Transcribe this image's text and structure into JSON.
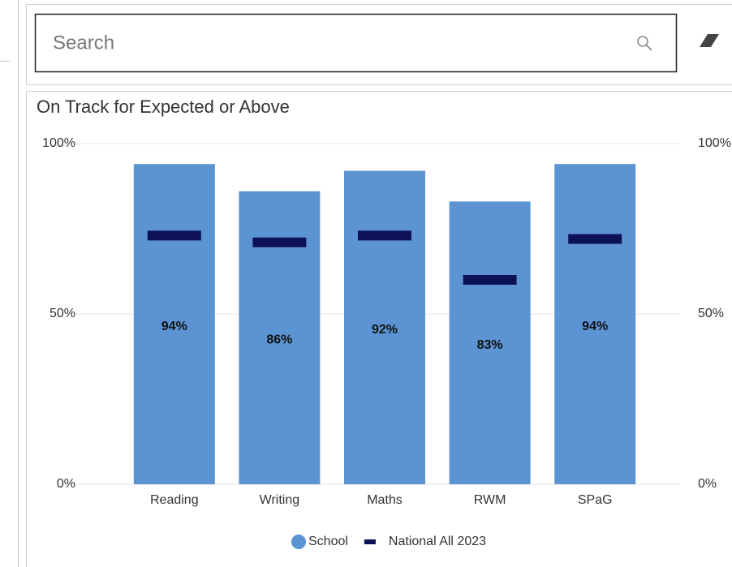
{
  "search": {
    "placeholder": "Search"
  },
  "chart_data": {
    "type": "bar",
    "title": "On Track for Expected or Above",
    "categories": [
      "Reading",
      "Writing",
      "Maths",
      "RWM",
      "SPaG"
    ],
    "series": [
      {
        "name": "School",
        "color": "#5b93d3",
        "values": [
          94,
          86,
          92,
          83,
          94
        ],
        "value_labels": [
          "94%",
          "86%",
          "92%",
          "83%",
          "94%"
        ]
      },
      {
        "name": "National All 2023",
        "color": "#0d1257",
        "values": [
          73,
          71,
          73,
          60,
          72
        ],
        "marker": "dash"
      }
    ],
    "ylim": [
      0,
      100
    ],
    "yticks": [
      {
        "value": 0,
        "label": "0%"
      },
      {
        "value": 50,
        "label": "50%"
      },
      {
        "value": 100,
        "label": "100%"
      }
    ],
    "y2lim": [
      0,
      100
    ],
    "y2ticks": [
      {
        "value": 0,
        "label": "0%"
      },
      {
        "value": 50,
        "label": "50%"
      },
      {
        "value": 100,
        "label": "100%"
      }
    ],
    "grid": true,
    "legend": "bottom"
  }
}
